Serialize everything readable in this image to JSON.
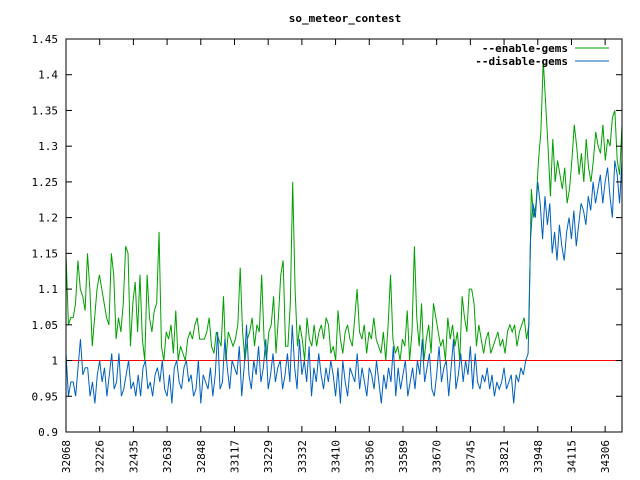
{
  "chart_data": {
    "type": "line",
    "title": "so_meteor_contest",
    "xlabel": "",
    "ylabel": "",
    "ylim": [
      0.9,
      1.45
    ],
    "yticks": [
      "0.9",
      "0.95",
      "1",
      "1.05",
      "1.1",
      "1.15",
      "1.2",
      "1.25",
      "1.3",
      "1.35",
      "1.4",
      "1.45"
    ],
    "xtick_labels": [
      "32068",
      "32226",
      "32435",
      "32638",
      "32848",
      "33117",
      "33229",
      "33332",
      "33410",
      "33506",
      "33589",
      "33670",
      "33745",
      "33821",
      "33948",
      "34115",
      "34306"
    ],
    "grid": false,
    "legend_position": "top-right",
    "reference_line": {
      "value": 1.0,
      "color": "#ff0000"
    },
    "series": [
      {
        "name": "--enable-gems",
        "color": "#00a000",
        "values": [
          1.15,
          1.05,
          1.06,
          1.06,
          1.08,
          1.14,
          1.1,
          1.09,
          1.07,
          1.15,
          1.1,
          1.02,
          1.06,
          1.1,
          1.12,
          1.1,
          1.08,
          1.06,
          1.05,
          1.15,
          1.12,
          1.03,
          1.06,
          1.04,
          1.08,
          1.16,
          1.15,
          1.02,
          1.08,
          1.11,
          1.04,
          1.12,
          1.03,
          1.0,
          1.12,
          1.06,
          1.04,
          1.07,
          1.08,
          1.18,
          1.02,
          1.0,
          1.04,
          1.03,
          1.05,
          1.01,
          1.07,
          1.0,
          1.02,
          1.01,
          1.0,
          1.03,
          1.04,
          1.03,
          1.05,
          1.06,
          1.03,
          1.03,
          1.03,
          1.04,
          1.06,
          1.02,
          1.01,
          1.04,
          1.03,
          1.02,
          1.09,
          1.0,
          1.04,
          1.03,
          1.02,
          1.03,
          1.05,
          1.13,
          1.04,
          1.0,
          1.03,
          1.04,
          1.06,
          1.02,
          1.05,
          1.04,
          1.12,
          1.03,
          1.0,
          1.04,
          1.05,
          1.09,
          1.01,
          1.06,
          1.12,
          1.14,
          1.02,
          1.02,
          1.08,
          1.25,
          1.1,
          1.02,
          1.05,
          1.03,
          1.0,
          1.06,
          1.03,
          1.02,
          1.05,
          1.02,
          1.04,
          1.05,
          1.03,
          1.06,
          1.05,
          1.01,
          1.02,
          1.0,
          1.07,
          1.03,
          1.01,
          1.04,
          1.05,
          1.03,
          1.02,
          1.06,
          1.1,
          1.04,
          1.03,
          1.05,
          1.01,
          1.04,
          1.03,
          1.06,
          1.03,
          1.02,
          1.01,
          1.04,
          1.0,
          1.05,
          1.12,
          1.03,
          1.01,
          1.02,
          1.0,
          1.03,
          1.02,
          1.07,
          1.0,
          1.04,
          1.16,
          1.06,
          1.02,
          1.08,
          1.0,
          1.03,
          1.05,
          1.01,
          1.08,
          1.06,
          1.04,
          1.02,
          1.03,
          1.0,
          1.06,
          1.03,
          1.05,
          1.02,
          1.04,
          1.0,
          1.09,
          1.06,
          1.04,
          1.1,
          1.1,
          1.08,
          1.02,
          1.05,
          1.03,
          1.01,
          1.03,
          1.04,
          1.01,
          1.02,
          1.03,
          1.04,
          1.02,
          1.03,
          1.01,
          1.04,
          1.05,
          1.04,
          1.05,
          1.02,
          1.04,
          1.05,
          1.06,
          1.03,
          1.05,
          1.24,
          1.2,
          1.22,
          1.28,
          1.32,
          1.42,
          1.36,
          1.3,
          1.23,
          1.31,
          1.25,
          1.28,
          1.26,
          1.24,
          1.27,
          1.22,
          1.24,
          1.28,
          1.33,
          1.3,
          1.26,
          1.29,
          1.25,
          1.31,
          1.27,
          1.25,
          1.28,
          1.32,
          1.3,
          1.29,
          1.33,
          1.28,
          1.31,
          1.3,
          1.34,
          1.35,
          1.28,
          1.26,
          1.33
        ]
      },
      {
        "name": "--disable-gems",
        "color": "#0060c0",
        "values": [
          1.01,
          0.95,
          0.97,
          0.97,
          0.95,
          0.99,
          1.03,
          0.98,
          0.99,
          0.99,
          0.95,
          0.97,
          0.94,
          0.98,
          1.0,
          0.97,
          0.99,
          0.95,
          0.98,
          1.01,
          0.96,
          0.97,
          1.01,
          0.95,
          0.96,
          0.98,
          1.0,
          0.96,
          0.97,
          0.95,
          0.98,
          0.95,
          0.99,
          1.0,
          0.96,
          0.97,
          0.95,
          0.98,
          0.99,
          0.97,
          1.0,
          0.96,
          0.95,
          0.98,
          0.94,
          0.99,
          1.0,
          0.97,
          0.96,
          0.99,
          1.0,
          0.97,
          0.98,
          0.95,
          0.96,
          1.0,
          0.94,
          0.98,
          0.97,
          0.96,
          0.99,
          0.95,
          0.98,
          1.04,
          0.96,
          0.97,
          1.03,
          0.99,
          0.96,
          1.0,
          0.99,
          0.98,
          1.02,
          0.95,
          0.99,
          1.05,
          0.98,
          0.96,
          1.0,
          0.98,
          1.02,
          0.97,
          0.99,
          1.03,
          0.96,
          0.98,
          1.01,
          0.97,
          0.99,
          1.0,
          0.96,
          0.98,
          1.01,
          0.97,
          1.05,
          0.99,
          0.96,
          1.03,
          0.98,
          1.0,
          0.97,
          1.02,
          0.95,
          0.99,
          0.97,
          1.01,
          0.98,
          0.96,
          0.99,
          0.97,
          1.0,
          0.98,
          0.95,
          0.99,
          0.94,
          1.0,
          0.97,
          0.95,
          0.99,
          0.98,
          0.97,
          1.01,
          0.96,
          0.99,
          0.97,
          0.95,
          0.99,
          0.98,
          0.96,
          1.0,
          0.97,
          0.94,
          0.98,
          0.96,
          0.99,
          0.97,
          1.02,
          0.95,
          0.99,
          0.96,
          0.98,
          1.0,
          0.95,
          0.97,
          0.99,
          0.96,
          1.0,
          0.98,
          1.03,
          0.97,
          0.99,
          1.01,
          0.96,
          0.95,
          0.98,
          1.02,
          0.97,
          0.99,
          1.0,
          0.95,
          0.99,
          1.03,
          0.96,
          0.98,
          1.01,
          0.97,
          1.0,
          0.98,
          1.02,
          0.96,
          1.01,
          0.97,
          0.96,
          0.98,
          0.97,
          0.99,
          0.96,
          0.98,
          0.95,
          0.97,
          0.96,
          0.97,
          0.99,
          0.96,
          0.97,
          0.98,
          0.94,
          0.98,
          0.97,
          0.99,
          0.98,
          1.0,
          1.01,
          1.17,
          1.22,
          1.2,
          1.25,
          1.22,
          1.17,
          1.23,
          1.19,
          1.22,
          1.15,
          1.18,
          1.14,
          1.19,
          1.16,
          1.14,
          1.18,
          1.2,
          1.17,
          1.21,
          1.16,
          1.19,
          1.22,
          1.21,
          1.19,
          1.23,
          1.21,
          1.25,
          1.22,
          1.24,
          1.26,
          1.22,
          1.25,
          1.27,
          1.23,
          1.2,
          1.28,
          1.26,
          1.22,
          1.28
        ]
      }
    ]
  }
}
